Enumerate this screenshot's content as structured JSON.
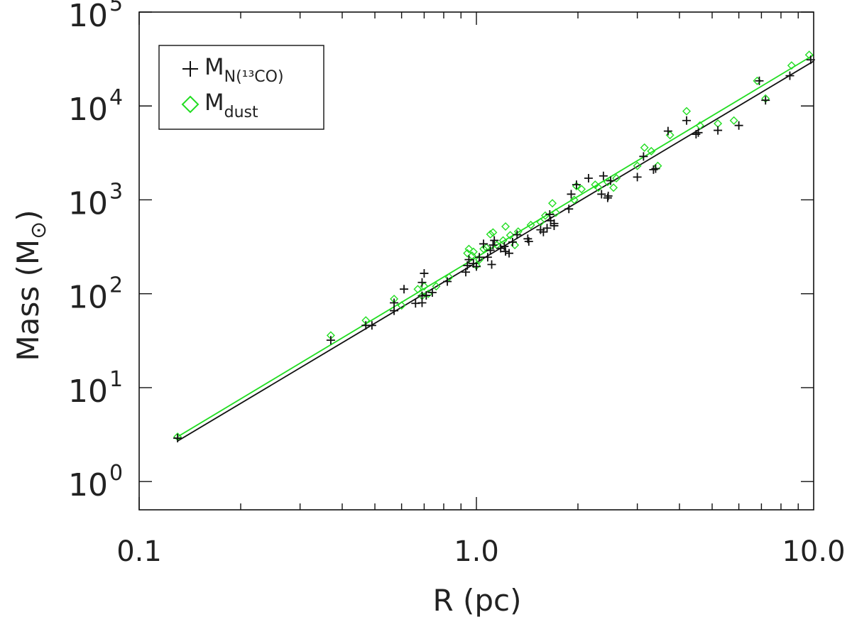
{
  "chart_data": {
    "type": "scatter",
    "xscale": "log",
    "yscale": "log",
    "xlim": [
      0.1,
      10.0
    ],
    "ylim": [
      0.5,
      100000
    ],
    "xlabel": "R (pc)",
    "ylabel": {
      "main": "Mass (M",
      "sub": "⊙",
      "close": ")"
    },
    "xticks": [
      {
        "value": 0.1,
        "label": "0.1"
      },
      {
        "value": 1.0,
        "label": "1.0"
      },
      {
        "value": 10.0,
        "label": "10.0"
      }
    ],
    "yticks": [
      {
        "value": 1,
        "base": "10",
        "exp": "0"
      },
      {
        "value": 10,
        "base": "10",
        "exp": "1"
      },
      {
        "value": 100,
        "base": "10",
        "exp": "2"
      },
      {
        "value": 1000,
        "base": "10",
        "exp": "3"
      },
      {
        "value": 10000,
        "base": "10",
        "exp": "4"
      },
      {
        "value": 100000,
        "base": "10",
        "exp": "5"
      }
    ],
    "legend": {
      "position": "top-left",
      "entries": [
        {
          "marker": "plus",
          "color": "#111111",
          "main": "M",
          "sub": "N(¹³CO)"
        },
        {
          "marker": "diamond",
          "color": "#22dd22",
          "main": "M",
          "sub": "dust"
        }
      ]
    },
    "series": [
      {
        "name": "M_N(13CO)",
        "marker": "plus",
        "color": "#111111",
        "fit": {
          "x": [
            0.13,
            10.0
          ],
          "y": [
            2.7,
            30000
          ]
        },
        "points": [
          [
            0.13,
            2.9
          ],
          [
            0.37,
            32
          ],
          [
            0.47,
            46
          ],
          [
            0.49,
            46
          ],
          [
            0.57,
            66
          ],
          [
            0.57,
            80
          ],
          [
            0.61,
            112
          ],
          [
            0.66,
            79
          ],
          [
            0.69,
            80
          ],
          [
            0.69,
            95
          ],
          [
            0.69,
            132
          ],
          [
            0.7,
            165
          ],
          [
            0.71,
            96
          ],
          [
            0.74,
            103
          ],
          [
            0.82,
            135
          ],
          [
            0.93,
            170
          ],
          [
            0.94,
            200
          ],
          [
            0.95,
            231
          ],
          [
            0.98,
            210
          ],
          [
            1.0,
            195
          ],
          [
            1.02,
            245
          ],
          [
            1.05,
            340
          ],
          [
            1.08,
            245
          ],
          [
            1.1,
            290
          ],
          [
            1.11,
            205
          ],
          [
            1.12,
            330
          ],
          [
            1.13,
            370
          ],
          [
            1.18,
            305
          ],
          [
            1.21,
            320
          ],
          [
            1.22,
            282
          ],
          [
            1.25,
            270
          ],
          [
            1.28,
            355
          ],
          [
            1.32,
            425
          ],
          [
            1.42,
            385
          ],
          [
            1.43,
            360
          ],
          [
            1.55,
            480
          ],
          [
            1.58,
            455
          ],
          [
            1.62,
            500
          ],
          [
            1.65,
            700
          ],
          [
            1.66,
            600
          ],
          [
            1.7,
            560
          ],
          [
            1.7,
            530
          ],
          [
            1.88,
            800
          ],
          [
            1.91,
            1150
          ],
          [
            1.98,
            1450
          ],
          [
            2.15,
            1700
          ],
          [
            2.35,
            1150
          ],
          [
            2.38,
            1800
          ],
          [
            2.45,
            1050
          ],
          [
            2.46,
            1100
          ],
          [
            2.5,
            1600
          ],
          [
            3.0,
            1750
          ],
          [
            3.13,
            2900
          ],
          [
            3.35,
            2100
          ],
          [
            3.4,
            2150
          ],
          [
            3.7,
            5400
          ],
          [
            4.2,
            7000
          ],
          [
            4.48,
            5000
          ],
          [
            4.55,
            5200
          ],
          [
            5.2,
            5500
          ],
          [
            6.0,
            6200
          ],
          [
            6.9,
            18500
          ],
          [
            7.2,
            11500
          ],
          [
            8.5,
            21000
          ],
          [
            9.8,
            31000
          ]
        ]
      },
      {
        "name": "M_dust",
        "marker": "diamond",
        "color": "#22dd22",
        "fit": {
          "x": [
            0.13,
            10.0
          ],
          "y": [
            3.0,
            35000
          ]
        },
        "points": [
          [
            0.13,
            3.0
          ],
          [
            0.37,
            36
          ],
          [
            0.47,
            52
          ],
          [
            0.57,
            88
          ],
          [
            0.6,
            75
          ],
          [
            0.67,
            112
          ],
          [
            0.69,
            95
          ],
          [
            0.7,
            120
          ],
          [
            0.72,
            100
          ],
          [
            0.76,
            120
          ],
          [
            0.83,
            150
          ],
          [
            0.94,
            270
          ],
          [
            0.95,
            300
          ],
          [
            0.97,
            255
          ],
          [
            0.98,
            280
          ],
          [
            1.0,
            200
          ],
          [
            1.02,
            230
          ],
          [
            1.05,
            300
          ],
          [
            1.07,
            310
          ],
          [
            1.1,
            430
          ],
          [
            1.12,
            450
          ],
          [
            1.15,
            330
          ],
          [
            1.2,
            370
          ],
          [
            1.22,
            520
          ],
          [
            1.26,
            420
          ],
          [
            1.3,
            330
          ],
          [
            1.33,
            460
          ],
          [
            1.45,
            540
          ],
          [
            1.55,
            580
          ],
          [
            1.6,
            680
          ],
          [
            1.68,
            920
          ],
          [
            1.72,
            730
          ],
          [
            1.95,
            1000
          ],
          [
            1.98,
            1400
          ],
          [
            2.05,
            1300
          ],
          [
            2.25,
            1450
          ],
          [
            2.3,
            1350
          ],
          [
            2.45,
            1550
          ],
          [
            2.55,
            1350
          ],
          [
            2.6,
            1700
          ],
          [
            3.0,
            2300
          ],
          [
            3.15,
            3600
          ],
          [
            3.3,
            3300
          ],
          [
            3.45,
            2300
          ],
          [
            3.75,
            4900
          ],
          [
            4.2,
            8800
          ],
          [
            4.6,
            6200
          ],
          [
            5.2,
            6500
          ],
          [
            5.8,
            7000
          ],
          [
            6.8,
            18500
          ],
          [
            7.2,
            12000
          ],
          [
            8.6,
            27000
          ],
          [
            9.7,
            35000
          ]
        ]
      }
    ]
  }
}
